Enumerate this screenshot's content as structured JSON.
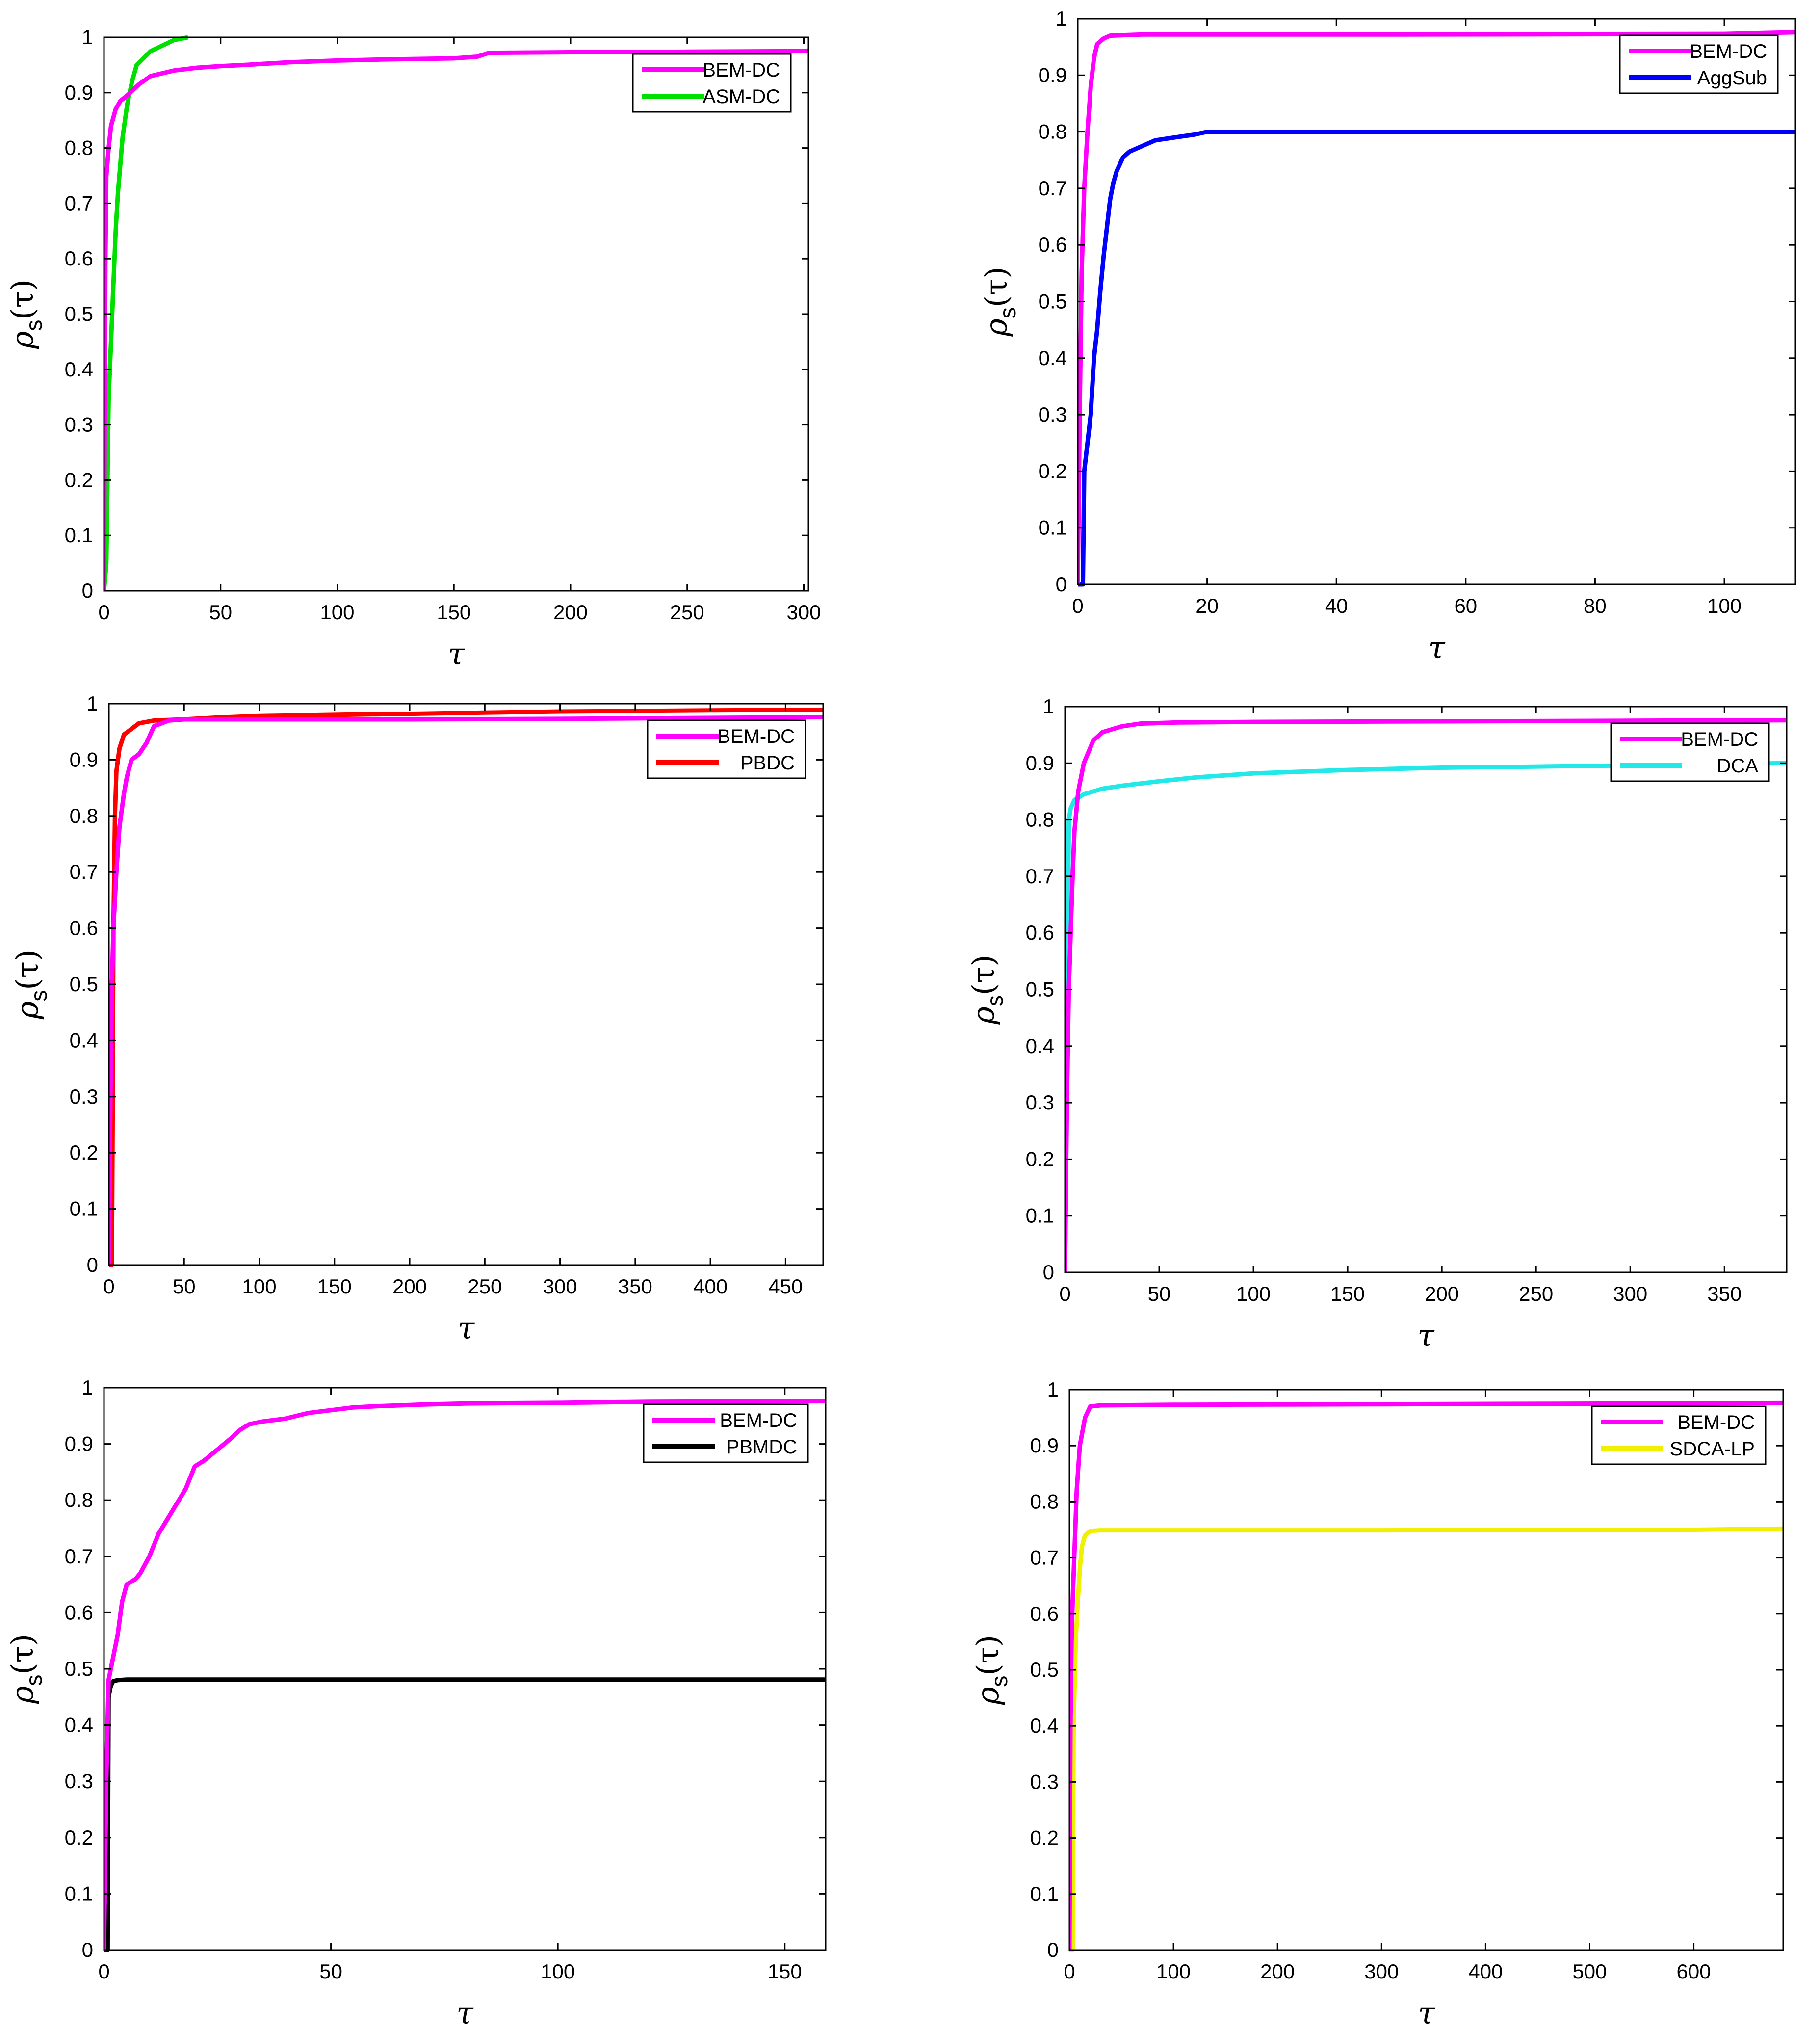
{
  "figure": {
    "ylabel_symbol": "ρ",
    "ylabel_subscript": "s",
    "ylabel_argument": "(τ)",
    "xlabel": "τ"
  },
  "colors": {
    "BEM-DC": "#ff00ff",
    "ASM-DC": "#00e000",
    "AggSub": "#0000ff",
    "PBDC": "#ff0000",
    "DCA": "#22e8e8",
    "PBMDC": "#000000",
    "SDCA-LP": "#f0f000",
    "axis": "#000000",
    "background": "#ffffff"
  },
  "chart_data": [
    {
      "type": "line",
      "xlabel": "τ",
      "ylabel": "ρs(τ)",
      "xlim": [
        0,
        302
      ],
      "ylim": [
        0,
        1
      ],
      "xticks": [
        0,
        50,
        100,
        150,
        200,
        250,
        300
      ],
      "yticks": [
        0,
        0.1,
        0.2,
        0.3,
        0.4,
        0.5,
        0.6,
        0.7,
        0.8,
        0.9,
        1
      ],
      "legend_position": "top-right",
      "series": [
        {
          "name": "BEM-DC",
          "color": "#ff00ff",
          "x": [
            0,
            0.3,
            0.6,
            1,
            2,
            3,
            5,
            7,
            10,
            15,
            20,
            30,
            40,
            50,
            60,
            80,
            100,
            120,
            150,
            160,
            165,
            200,
            250,
            300,
            302
          ],
          "y": [
            0,
            0.3,
            0.6,
            0.75,
            0.8,
            0.84,
            0.87,
            0.885,
            0.895,
            0.915,
            0.93,
            0.94,
            0.945,
            0.948,
            0.95,
            0.955,
            0.958,
            0.96,
            0.962,
            0.965,
            0.972,
            0.973,
            0.974,
            0.975,
            0.976
          ]
        },
        {
          "name": "ASM-DC",
          "color": "#00e000",
          "x": [
            0,
            1,
            1.5,
            2,
            3,
            4,
            5,
            6,
            8,
            10,
            12,
            14,
            20,
            25,
            30,
            36
          ],
          "y": [
            0,
            0.05,
            0.2,
            0.35,
            0.45,
            0.55,
            0.65,
            0.72,
            0.82,
            0.88,
            0.92,
            0.95,
            0.975,
            0.985,
            0.995,
            1.0
          ]
        }
      ]
    },
    {
      "type": "line",
      "xlabel": "τ",
      "ylabel": "ρs(τ)",
      "xlim": [
        0,
        111
      ],
      "ylim": [
        0,
        1
      ],
      "xticks": [
        0,
        20,
        40,
        60,
        80,
        100
      ],
      "yticks": [
        0,
        0.1,
        0.2,
        0.3,
        0.4,
        0.5,
        0.6,
        0.7,
        0.8,
        0.9,
        1
      ],
      "legend_position": "top-right",
      "series": [
        {
          "name": "BEM-DC",
          "color": "#ff00ff",
          "x": [
            0,
            0.3,
            0.6,
            1,
            1.5,
            2,
            2.5,
            3,
            4,
            5,
            10,
            20,
            50,
            100,
            111
          ],
          "y": [
            0,
            0.3,
            0.55,
            0.7,
            0.8,
            0.88,
            0.93,
            0.955,
            0.965,
            0.97,
            0.972,
            0.972,
            0.972,
            0.973,
            0.976
          ]
        },
        {
          "name": "AggSub",
          "color": "#0000ff",
          "x": [
            0,
            0.8,
            1,
            1.5,
            2,
            2.5,
            3,
            3.5,
            4,
            4.5,
            5,
            5.5,
            6,
            7,
            8,
            10,
            12,
            15,
            18,
            20,
            22,
            50,
            111
          ],
          "y": [
            0,
            0,
            0.2,
            0.25,
            0.3,
            0.4,
            0.45,
            0.52,
            0.58,
            0.63,
            0.68,
            0.71,
            0.73,
            0.755,
            0.765,
            0.775,
            0.785,
            0.79,
            0.795,
            0.8,
            0.8,
            0.8,
            0.8
          ]
        }
      ]
    },
    {
      "type": "line",
      "xlabel": "τ",
      "ylabel": "ρs(τ)",
      "xlim": [
        0,
        475
      ],
      "ylim": [
        0,
        1
      ],
      "xticks": [
        0,
        50,
        100,
        150,
        200,
        250,
        300,
        350,
        400,
        450
      ],
      "yticks": [
        0,
        0.1,
        0.2,
        0.3,
        0.4,
        0.5,
        0.6,
        0.7,
        0.8,
        0.9,
        1
      ],
      "legend_position": "top-right",
      "series": [
        {
          "name": "BEM-DC",
          "color": "#ff00ff",
          "x": [
            0,
            1,
            2,
            3,
            5,
            7,
            10,
            12,
            15,
            20,
            25,
            30,
            40,
            50,
            100,
            200,
            300,
            475
          ],
          "y": [
            0,
            0.3,
            0.5,
            0.6,
            0.7,
            0.78,
            0.84,
            0.87,
            0.9,
            0.91,
            0.93,
            0.96,
            0.97,
            0.972,
            0.972,
            0.972,
            0.973,
            0.976
          ]
        },
        {
          "name": "PBDC",
          "color": "#ff0000",
          "x": [
            0,
            2,
            2.5,
            3,
            4,
            5,
            7,
            10,
            15,
            20,
            30,
            50,
            70,
            100,
            150,
            200,
            250,
            300,
            350,
            400,
            475
          ],
          "y": [
            0,
            0,
            0.3,
            0.6,
            0.8,
            0.88,
            0.92,
            0.945,
            0.955,
            0.965,
            0.97,
            0.972,
            0.975,
            0.978,
            0.98,
            0.982,
            0.984,
            0.986,
            0.987,
            0.988,
            0.989
          ]
        }
      ]
    },
    {
      "type": "line",
      "xlabel": "τ",
      "ylabel": "ρs(τ)",
      "xlim": [
        0,
        383
      ],
      "ylim": [
        0,
        1
      ],
      "xticks": [
        0,
        50,
        100,
        150,
        200,
        250,
        300,
        350
      ],
      "yticks": [
        0,
        0.1,
        0.2,
        0.3,
        0.4,
        0.5,
        0.6,
        0.7,
        0.8,
        0.9,
        1
      ],
      "legend_position": "top-right",
      "series": [
        {
          "name": "BEM-DC",
          "color": "#ff00ff",
          "x": [
            0,
            1,
            2,
            3,
            4,
            5,
            7,
            10,
            15,
            20,
            30,
            40,
            60,
            100,
            200,
            300,
            383
          ],
          "y": [
            0,
            0.3,
            0.5,
            0.6,
            0.7,
            0.78,
            0.85,
            0.9,
            0.94,
            0.955,
            0.965,
            0.97,
            0.972,
            0.973,
            0.974,
            0.975,
            0.976
          ]
        },
        {
          "name": "DCA",
          "color": "#22e8e8",
          "x": [
            0,
            1,
            1.5,
            2,
            3,
            5,
            10,
            20,
            30,
            50,
            70,
            100,
            150,
            200,
            300,
            383
          ],
          "y": [
            0,
            0.3,
            0.6,
            0.8,
            0.82,
            0.835,
            0.845,
            0.855,
            0.86,
            0.868,
            0.875,
            0.882,
            0.888,
            0.892,
            0.896,
            0.9
          ]
        }
      ]
    },
    {
      "type": "line",
      "xlabel": "τ",
      "ylabel": "ρs(τ)",
      "xlim": [
        0,
        159
      ],
      "ylim": [
        0,
        1
      ],
      "xticks": [
        0,
        50,
        100,
        150
      ],
      "yticks": [
        0,
        0.1,
        0.2,
        0.3,
        0.4,
        0.5,
        0.6,
        0.7,
        0.8,
        0.9,
        1
      ],
      "legend_position": "top-right",
      "series": [
        {
          "name": "BEM-DC",
          "color": "#ff00ff",
          "x": [
            0,
            0.5,
            1,
            2,
            3,
            4,
            5,
            7,
            8,
            10,
            12,
            15,
            18,
            20,
            22,
            25,
            28,
            30,
            32,
            35,
            40,
            45,
            50,
            55,
            60,
            70,
            80,
            100,
            120,
            159
          ],
          "y": [
            0,
            0.3,
            0.48,
            0.52,
            0.56,
            0.62,
            0.65,
            0.66,
            0.67,
            0.7,
            0.74,
            0.78,
            0.82,
            0.86,
            0.87,
            0.89,
            0.91,
            0.925,
            0.935,
            0.94,
            0.945,
            0.955,
            0.96,
            0.965,
            0.967,
            0.97,
            0.972,
            0.973,
            0.975,
            0.976
          ]
        },
        {
          "name": "PBMDC",
          "color": "#000000",
          "x": [
            0,
            0.8,
            1,
            1.5,
            2,
            3,
            5,
            159
          ],
          "y": [
            0,
            0,
            0.45,
            0.47,
            0.478,
            0.48,
            0.481,
            0.481
          ]
        }
      ]
    },
    {
      "type": "line",
      "xlabel": "τ",
      "ylabel": "ρs(τ)",
      "xlim": [
        0,
        686
      ],
      "ylim": [
        0,
        1
      ],
      "xticks": [
        0,
        100,
        200,
        300,
        400,
        500,
        600
      ],
      "yticks": [
        0,
        0.1,
        0.2,
        0.3,
        0.4,
        0.5,
        0.6,
        0.7,
        0.8,
        0.9,
        1
      ],
      "legend_position": "top-right",
      "series": [
        {
          "name": "BEM-DC",
          "color": "#ff00ff",
          "x": [
            0,
            1,
            2,
            3,
            5,
            7,
            10,
            15,
            20,
            30,
            100,
            300,
            686
          ],
          "y": [
            0,
            0.4,
            0.55,
            0.62,
            0.72,
            0.82,
            0.9,
            0.95,
            0.97,
            0.972,
            0.973,
            0.974,
            0.976
          ]
        },
        {
          "name": "SDCA-LP",
          "color": "#f0f000",
          "x": [
            0,
            3,
            4,
            6,
            8,
            10,
            12,
            15,
            20,
            30,
            100,
            300,
            600,
            686
          ],
          "y": [
            0,
            0,
            0.4,
            0.55,
            0.62,
            0.68,
            0.72,
            0.74,
            0.748,
            0.749,
            0.749,
            0.749,
            0.75,
            0.752
          ]
        }
      ]
    }
  ]
}
